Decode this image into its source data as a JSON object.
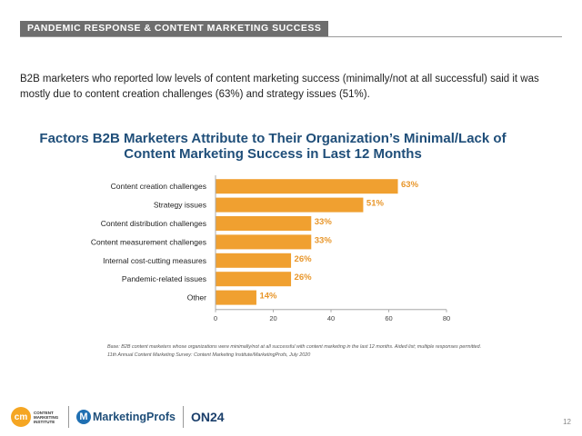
{
  "header": {
    "section": "PANDEMIC RESPONSE & CONTENT MARKETING SUCCESS"
  },
  "intro": "B2B marketers who reported low levels of content marketing success (minimally/not at all successful) said it was mostly due to content creation challenges (63%) and strategy issues (51%).",
  "chart_data": {
    "type": "bar",
    "orientation": "horizontal",
    "title": "Factors B2B Marketers Attribute to Their Organization’s Minimal/Lack of Content Marketing Success in Last 12 Months",
    "categories": [
      "Content creation challenges",
      "Strategy issues",
      "Content distribution challenges",
      "Content measurement challenges",
      "Internal cost-cutting measures",
      "Pandemic-related issues",
      "Other"
    ],
    "values": [
      63,
      51,
      33,
      33,
      26,
      26,
      14
    ],
    "value_labels": [
      "63%",
      "51%",
      "33%",
      "33%",
      "26%",
      "26%",
      "14%"
    ],
    "xlim": [
      0,
      80
    ],
    "x_ticks": [
      0,
      20,
      40,
      60,
      80
    ],
    "grid": false,
    "bar_color": "#f0a030",
    "value_label_color": "#e8962a"
  },
  "footnote": {
    "line1": "Base: B2B content marketers whose organizations were minimally/not at all successful with content marketing in the last 12 months. Aided list; multiple responses permitted.",
    "line2": "11th Annual Content Marketing Survey: Content Marketing Institute/MarketingProfs, July 2020"
  },
  "logos": {
    "cmi_mark": "cm",
    "cmi_text": "CONTENT MARKETING INSTITUTE",
    "mp_mark": "M",
    "mp_text": "MarketingProfs",
    "on24_text": "ON24"
  },
  "page_number": "12"
}
